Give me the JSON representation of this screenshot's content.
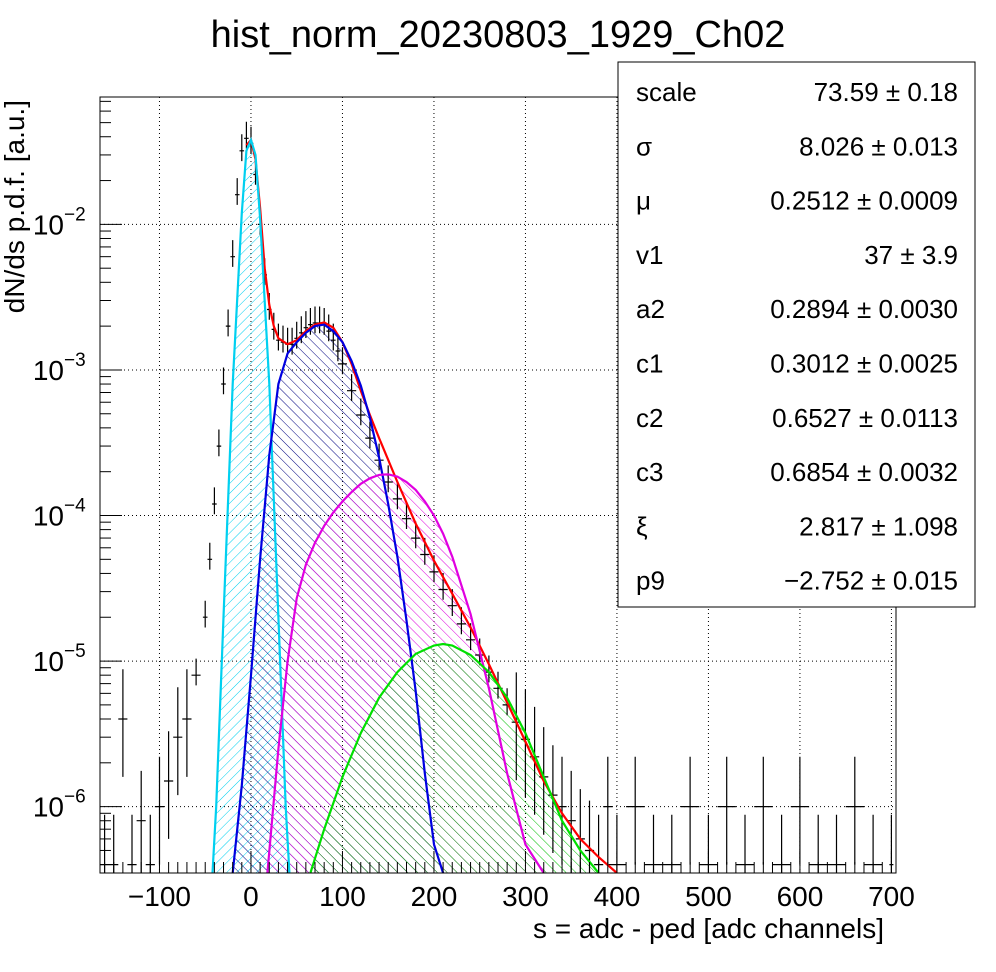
{
  "chart_data": {
    "type": "line",
    "title": "hist_norm_20230803_1929_Ch02",
    "xlabel": "s = adc - ped [adc channels]",
    "ylabel": "dN/ds p.d.f. [a.u.]",
    "x_scale": "linear",
    "y_scale": "log",
    "xlim": [
      -165,
      705
    ],
    "ylim": [
      3.5e-07,
      0.075
    ],
    "x_ticks": [
      {
        "v": -100,
        "label": "−100"
      },
      {
        "v": 0,
        "label": "0"
      },
      {
        "v": 100,
        "label": "100"
      },
      {
        "v": 200,
        "label": "200"
      },
      {
        "v": 300,
        "label": "300"
      },
      {
        "v": 400,
        "label": "400"
      },
      {
        "v": 500,
        "label": "500"
      },
      {
        "v": 600,
        "label": "600"
      },
      {
        "v": 700,
        "label": "700"
      }
    ],
    "y_ticks": [
      {
        "v": 1e-06,
        "base": "10",
        "exp": "−6"
      },
      {
        "v": 1e-05,
        "base": "10",
        "exp": "−5"
      },
      {
        "v": 0.0001,
        "base": "10",
        "exp": "−4"
      },
      {
        "v": 0.001,
        "base": "10",
        "exp": "−3"
      },
      {
        "v": 0.01,
        "base": "10",
        "exp": "−2"
      }
    ],
    "grid": true,
    "legend": "none",
    "histogram": {
      "color": "#000000",
      "x": [
        -160,
        -150,
        -140,
        -130,
        -120,
        -110,
        -100,
        -90,
        -80,
        -70,
        -60,
        -50,
        -45,
        -40,
        -35,
        -30,
        -25,
        -20,
        -15,
        -10,
        -5,
        0,
        5,
        10,
        15,
        20,
        25,
        30,
        35,
        40,
        45,
        50,
        55,
        60,
        65,
        70,
        75,
        80,
        85,
        90,
        95,
        100,
        110,
        120,
        130,
        140,
        150,
        160,
        170,
        180,
        190,
        200,
        210,
        220,
        230,
        240,
        250,
        260,
        270,
        280,
        290,
        300,
        310,
        320,
        330,
        340,
        350,
        360,
        370,
        380,
        390,
        400,
        420,
        440,
        460,
        480,
        500,
        520,
        540,
        560,
        580,
        600,
        620,
        640,
        660,
        680,
        700
      ],
      "y": [
        4e-07,
        4e-07,
        4e-06,
        4e-07,
        8e-07,
        4e-07,
        1e-06,
        1.5e-06,
        3e-06,
        4e-06,
        8e-06,
        2e-05,
        5e-05,
        0.00012,
        0.0003,
        0.0008,
        0.002,
        0.006,
        0.016,
        0.032,
        0.039,
        0.036,
        0.022,
        0.01,
        0.0045,
        0.0026,
        0.0019,
        0.0016,
        0.00155,
        0.0015,
        0.0015,
        0.00165,
        0.0018,
        0.00195,
        0.00205,
        0.0021,
        0.0021,
        0.00205,
        0.00185,
        0.0016,
        0.00135,
        0.0011,
        0.00072,
        0.00049,
        0.00034,
        0.00024,
        0.00017,
        0.00013,
        9.5e-05,
        7e-05,
        5.4e-05,
        4.1e-05,
        3.1e-05,
        2.4e-05,
        1.8e-05,
        1.4e-05,
        1.1e-05,
        8.4e-06,
        6.5e-06,
        5e-06,
        3.8e-06,
        2.9e-06,
        2.2e-06,
        1.6e-06,
        1.2e-06,
        1e-06,
        8e-07,
        6e-07,
        5e-07,
        4e-07,
        1e-06,
        4e-07,
        1e-06,
        4e-07,
        4e-07,
        1e-06,
        4e-07,
        1e-06,
        4e-07,
        1e-06,
        4e-07,
        1e-06,
        4e-07,
        4e-07,
        1e-06,
        4e-07,
        4e-07
      ]
    },
    "series": [
      {
        "color": "#ff0000",
        "fill": "none",
        "x": [
          -5,
          0,
          5,
          10,
          15,
          20,
          25,
          30,
          40,
          50,
          60,
          70,
          80,
          90,
          100,
          110,
          120,
          130,
          140,
          160,
          180,
          200,
          220,
          240,
          260,
          280,
          300,
          320,
          340,
          360,
          380,
          400
        ],
        "y": [
          0.035,
          0.038,
          0.028,
          0.013,
          0.005,
          0.0028,
          0.002,
          0.00165,
          0.0015,
          0.0016,
          0.00185,
          0.00205,
          0.00212,
          0.00195,
          0.00155,
          0.0011,
          0.00072,
          0.00049,
          0.00034,
          0.00017,
          8.8e-05,
          4.9e-05,
          2.9e-05,
          1.7e-05,
          9.5e-06,
          5.2e-06,
          2.8e-06,
          1.5e-06,
          9e-07,
          6e-07,
          4.5e-07,
          3.5e-07
        ]
      },
      {
        "color": "#00d0f0",
        "fill": "#00d0f0",
        "x": [
          -42,
          -38,
          -30,
          -20,
          -10,
          -5,
          0,
          5,
          10,
          20,
          30,
          38,
          42
        ],
        "y": [
          3.5e-07,
          1e-06,
          2e-05,
          0.0008,
          0.012,
          0.032,
          0.038,
          0.03,
          0.011,
          0.0008,
          2e-05,
          1e-06,
          3.5e-07
        ]
      },
      {
        "color": "#0000e0",
        "fill": "#000080",
        "x": [
          -20,
          -10,
          0,
          10,
          20,
          30,
          40,
          50,
          60,
          70,
          80,
          90,
          100,
          110,
          120,
          130,
          140,
          150,
          160,
          170,
          180,
          190,
          200,
          210
        ],
        "y": [
          3.5e-07,
          1.4e-06,
          8e-06,
          5e-05,
          0.00026,
          0.0008,
          0.0013,
          0.00155,
          0.0018,
          0.002,
          0.00205,
          0.00185,
          0.00155,
          0.00115,
          0.00078,
          0.00047,
          0.00025,
          0.00012,
          5.2e-05,
          1.9e-05,
          6.2e-06,
          1.7e-06,
          5.5e-07,
          3.5e-07
        ]
      },
      {
        "color": "#e000e0",
        "fill": "#e000e0",
        "x": [
          18,
          30,
          40,
          50,
          60,
          70,
          80,
          90,
          100,
          110,
          120,
          130,
          140,
          150,
          160,
          170,
          180,
          190,
          200,
          210,
          220,
          240,
          260,
          280,
          300,
          320
        ],
        "y": [
          3.5e-07,
          2.5e-06,
          1e-05,
          2.7e-05,
          4.6e-05,
          6.5e-05,
          8.5e-05,
          0.000105,
          0.000125,
          0.000145,
          0.000165,
          0.00018,
          0.00019,
          0.000192,
          0.000185,
          0.00017,
          0.00015,
          0.000125,
          0.0001,
          7.5e-05,
          5.2e-05,
          2.1e-05,
          6.5e-06,
          1.7e-06,
          5.5e-07,
          3.5e-07
        ]
      },
      {
        "color": "#00e000",
        "fill": "#00c000",
        "x": [
          65,
          80,
          100,
          120,
          140,
          160,
          180,
          200,
          210,
          220,
          240,
          260,
          280,
          300,
          320,
          340,
          360,
          380
        ],
        "y": [
          3.5e-07,
          7e-07,
          1.6e-06,
          3.2e-06,
          5.6e-06,
          8.4e-06,
          1.12e-05,
          1.28e-05,
          1.31e-05,
          1.28e-05,
          1.1e-05,
          8.4e-06,
          5.6e-06,
          3.2e-06,
          1.6e-06,
          8e-07,
          5e-07,
          3.5e-07
        ]
      }
    ],
    "fit_parameters": [
      {
        "name": "scale",
        "value": "73.59",
        "error": "0.18"
      },
      {
        "name": "σ",
        "value": "8.026",
        "error": "0.013"
      },
      {
        "name": "μ",
        "value": "0.2512",
        "error": "0.0009"
      },
      {
        "name": "v1",
        "value": "37",
        "error": "3.9"
      },
      {
        "name": "a2",
        "value": "0.2894",
        "error": "0.0030"
      },
      {
        "name": "c1",
        "value": "0.3012",
        "error": "0.0025"
      },
      {
        "name": "c2",
        "value": "0.6527",
        "error": "0.0113"
      },
      {
        "name": "c3",
        "value": "0.6854",
        "error": "0.0032"
      },
      {
        "name": "ξ",
        "value": "2.817",
        "error": "1.098"
      },
      {
        "name": "p9",
        "value": "−2.752",
        "error": "0.015"
      }
    ]
  }
}
